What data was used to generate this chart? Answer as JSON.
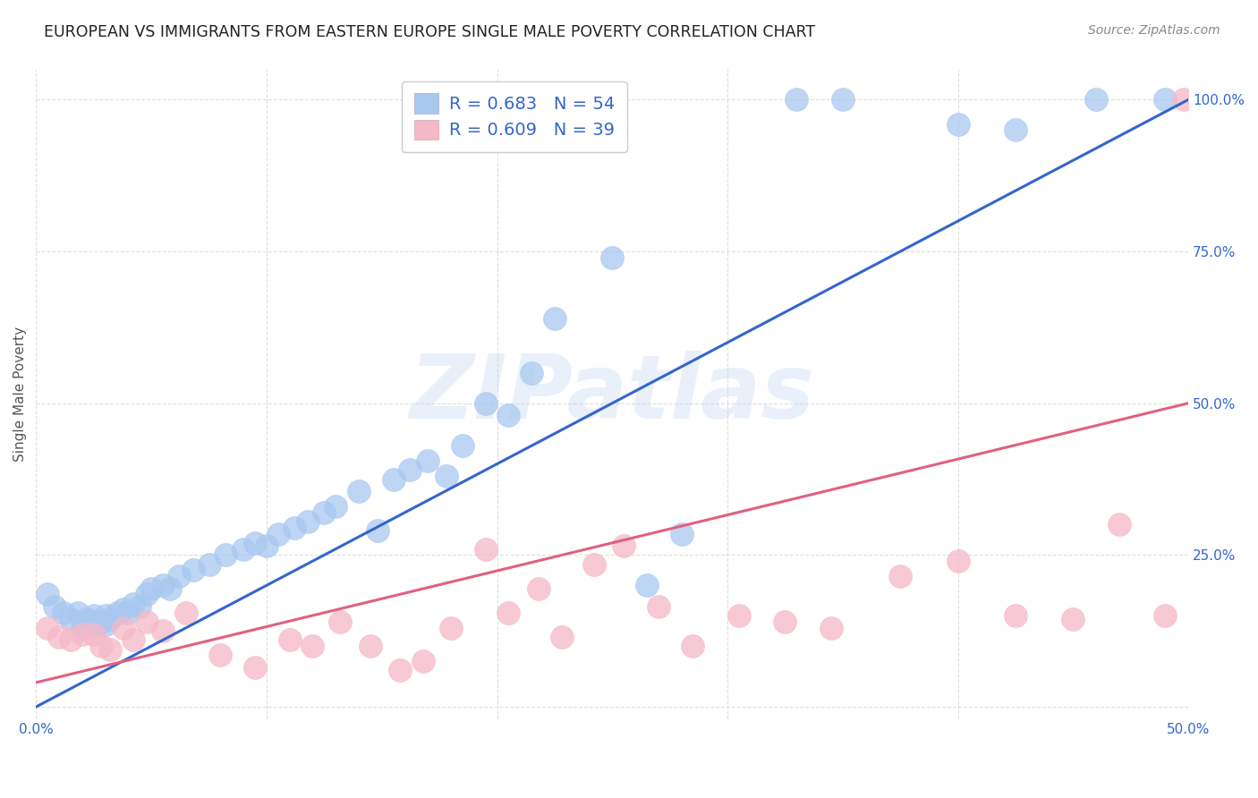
{
  "title": "EUROPEAN VS IMMIGRANTS FROM EASTERN EUROPE SINGLE MALE POVERTY CORRELATION CHART",
  "source": "Source: ZipAtlas.com",
  "ylabel": "Single Male Poverty",
  "xlim": [
    0.0,
    0.5
  ],
  "ylim": [
    -0.02,
    1.05
  ],
  "blue_R_label": "R = 0.683   N = 54",
  "pink_R_label": "R = 0.609   N = 39",
  "blue_color": "#A8C8F0",
  "pink_color": "#F5B8C8",
  "blue_line_color": "#3366CC",
  "pink_line_color": "#E06080",
  "watermark": "ZIPatlas",
  "blue_scatter_x": [
    0.005,
    0.008,
    0.012,
    0.015,
    0.018,
    0.02,
    0.022,
    0.025,
    0.025,
    0.028,
    0.03,
    0.03,
    0.032,
    0.035,
    0.038,
    0.04,
    0.042,
    0.045,
    0.048,
    0.05,
    0.055,
    0.058,
    0.062,
    0.068,
    0.075,
    0.082,
    0.09,
    0.095,
    0.1,
    0.105,
    0.112,
    0.118,
    0.125,
    0.13,
    0.14,
    0.148,
    0.155,
    0.162,
    0.17,
    0.178,
    0.185,
    0.195,
    0.205,
    0.215,
    0.225,
    0.25,
    0.265,
    0.28,
    0.33,
    0.35,
    0.4,
    0.425,
    0.46,
    0.49
  ],
  "blue_scatter_y": [
    0.185,
    0.165,
    0.155,
    0.145,
    0.155,
    0.13,
    0.145,
    0.135,
    0.15,
    0.14,
    0.135,
    0.15,
    0.145,
    0.155,
    0.16,
    0.155,
    0.17,
    0.165,
    0.185,
    0.195,
    0.2,
    0.195,
    0.215,
    0.225,
    0.235,
    0.25,
    0.26,
    0.27,
    0.265,
    0.285,
    0.295,
    0.305,
    0.32,
    0.33,
    0.355,
    0.29,
    0.375,
    0.39,
    0.405,
    0.38,
    0.43,
    0.5,
    0.48,
    0.55,
    0.64,
    0.74,
    0.2,
    0.285,
    1.0,
    1.0,
    0.96,
    0.95,
    1.0,
    1.0
  ],
  "pink_scatter_x": [
    0.005,
    0.01,
    0.015,
    0.02,
    0.025,
    0.028,
    0.032,
    0.038,
    0.042,
    0.048,
    0.055,
    0.065,
    0.08,
    0.095,
    0.11,
    0.12,
    0.132,
    0.145,
    0.158,
    0.168,
    0.18,
    0.195,
    0.205,
    0.218,
    0.228,
    0.242,
    0.255,
    0.27,
    0.285,
    0.305,
    0.325,
    0.345,
    0.375,
    0.4,
    0.425,
    0.45,
    0.47,
    0.49,
    0.498
  ],
  "pink_scatter_y": [
    0.13,
    0.115,
    0.11,
    0.12,
    0.12,
    0.1,
    0.095,
    0.13,
    0.11,
    0.14,
    0.125,
    0.155,
    0.085,
    0.065,
    0.11,
    0.1,
    0.14,
    0.1,
    0.06,
    0.075,
    0.13,
    0.26,
    0.155,
    0.195,
    0.115,
    0.235,
    0.265,
    0.165,
    0.1,
    0.15,
    0.14,
    0.13,
    0.215,
    0.24,
    0.15,
    0.145,
    0.3,
    0.15,
    1.0
  ],
  "blue_line_x": [
    0.0,
    0.5
  ],
  "blue_line_y": [
    0.0,
    1.0
  ],
  "pink_line_x": [
    0.0,
    0.5
  ],
  "pink_line_y": [
    0.04,
    0.5
  ],
  "background_color": "#FFFFFF",
  "grid_color": "#DDDDDD",
  "title_fontsize": 12.5,
  "label_fontsize": 11,
  "tick_fontsize": 11,
  "legend_fontsize": 14,
  "legend_label_color": "#3366CC"
}
